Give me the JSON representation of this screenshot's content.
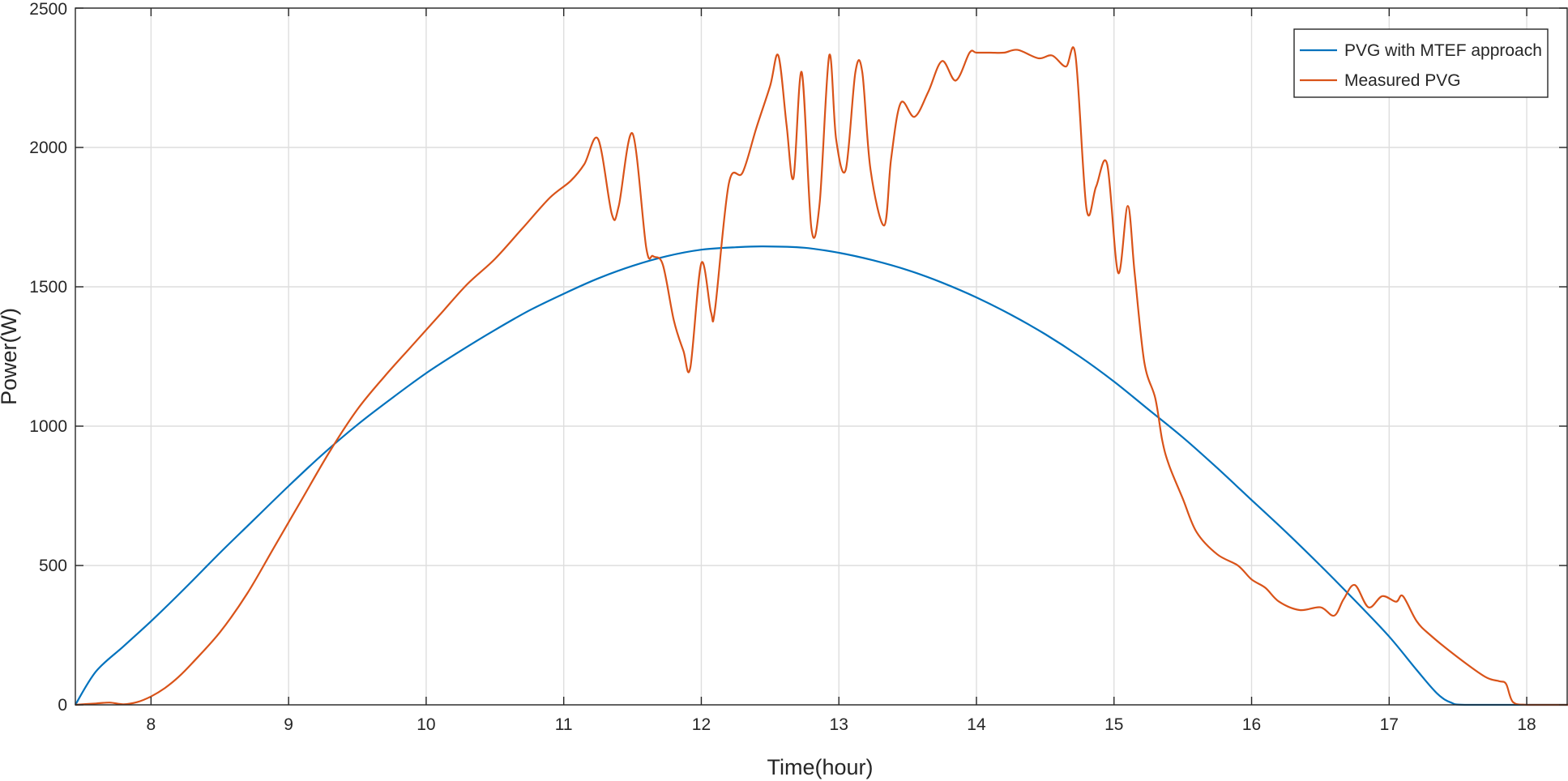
{
  "chart_data": {
    "type": "line",
    "title": "",
    "xlabel": "Time(hour)",
    "ylabel": "Power(W)",
    "xlim": [
      7.45,
      18.3
    ],
    "ylim": [
      0,
      2500
    ],
    "xticks": [
      8,
      9,
      10,
      11,
      12,
      13,
      14,
      15,
      16,
      17,
      18
    ],
    "yticks": [
      0,
      500,
      1000,
      1500,
      2000,
      2500
    ],
    "grid": true,
    "legend_position": "top-right",
    "series": [
      {
        "name": "PVG with MTEF approach",
        "color": "#0072BD",
        "x": [
          7.45,
          7.6,
          7.8,
          8.0,
          8.25,
          8.5,
          8.75,
          9.0,
          9.25,
          9.5,
          9.75,
          10.0,
          10.25,
          10.5,
          10.75,
          11.0,
          11.25,
          11.5,
          11.75,
          12.0,
          12.25,
          12.45,
          12.75,
          13.0,
          13.25,
          13.5,
          13.75,
          14.0,
          14.25,
          14.5,
          14.75,
          15.0,
          15.25,
          15.5,
          15.75,
          16.0,
          16.25,
          16.5,
          16.75,
          17.0,
          17.2,
          17.35,
          17.45,
          17.55,
          18.0,
          18.3
        ],
        "y": [
          0,
          120,
          210,
          300,
          420,
          545,
          665,
          785,
          900,
          1005,
          1100,
          1190,
          1270,
          1345,
          1415,
          1475,
          1530,
          1575,
          1610,
          1633,
          1642,
          1645,
          1640,
          1622,
          1595,
          1560,
          1515,
          1462,
          1400,
          1330,
          1250,
          1160,
          1060,
          960,
          850,
          735,
          620,
          500,
          375,
          245,
          125,
          40,
          8,
          0,
          0,
          0
        ]
      },
      {
        "name": "Measured PVG",
        "color": "#D95319",
        "x": [
          7.45,
          7.6,
          7.7,
          7.8,
          7.9,
          8.0,
          8.1,
          8.2,
          8.3,
          8.5,
          8.7,
          8.9,
          9.1,
          9.3,
          9.5,
          9.7,
          9.9,
          10.1,
          10.3,
          10.5,
          10.7,
          10.9,
          11.05,
          11.15,
          11.25,
          11.35,
          11.4,
          11.5,
          11.6,
          11.65,
          11.72,
          11.8,
          11.87,
          11.92,
          12.0,
          12.07,
          12.1,
          12.2,
          12.3,
          12.4,
          12.5,
          12.56,
          12.62,
          12.67,
          12.73,
          12.8,
          12.86,
          12.93,
          12.98,
          13.05,
          13.12,
          13.17,
          13.23,
          13.33,
          13.38,
          13.45,
          13.55,
          13.65,
          13.75,
          13.85,
          13.95,
          14.0,
          14.1,
          14.2,
          14.3,
          14.45,
          14.55,
          14.65,
          14.72,
          14.8,
          14.87,
          14.95,
          15.03,
          15.1,
          15.15,
          15.22,
          15.3,
          15.35,
          15.4,
          15.5,
          15.6,
          15.75,
          15.9,
          16.0,
          16.1,
          16.2,
          16.35,
          16.5,
          16.6,
          16.67,
          16.75,
          16.85,
          16.95,
          17.05,
          17.1,
          17.2,
          17.3,
          17.5,
          17.7,
          17.8,
          17.85,
          17.9,
          18.0,
          18.3
        ],
        "y": [
          0,
          5,
          8,
          2,
          10,
          30,
          60,
          100,
          150,
          260,
          400,
          570,
          740,
          910,
          1060,
          1180,
          1290,
          1400,
          1510,
          1600,
          1710,
          1820,
          1880,
          1940,
          2030,
          1760,
          1790,
          2050,
          1640,
          1610,
          1580,
          1380,
          1270,
          1210,
          1585,
          1410,
          1420,
          1870,
          1910,
          2070,
          2220,
          2330,
          2080,
          1890,
          2270,
          1710,
          1800,
          2330,
          2030,
          1920,
          2270,
          2270,
          1920,
          1720,
          1960,
          2160,
          2110,
          2200,
          2310,
          2240,
          2340,
          2340,
          2340,
          2340,
          2350,
          2320,
          2330,
          2290,
          2330,
          1780,
          1860,
          1940,
          1550,
          1790,
          1550,
          1230,
          1100,
          950,
          860,
          740,
          620,
          540,
          500,
          450,
          420,
          370,
          340,
          350,
          320,
          380,
          430,
          350,
          390,
          370,
          390,
          300,
          250,
          170,
          100,
          85,
          75,
          10,
          0,
          0
        ]
      }
    ]
  }
}
